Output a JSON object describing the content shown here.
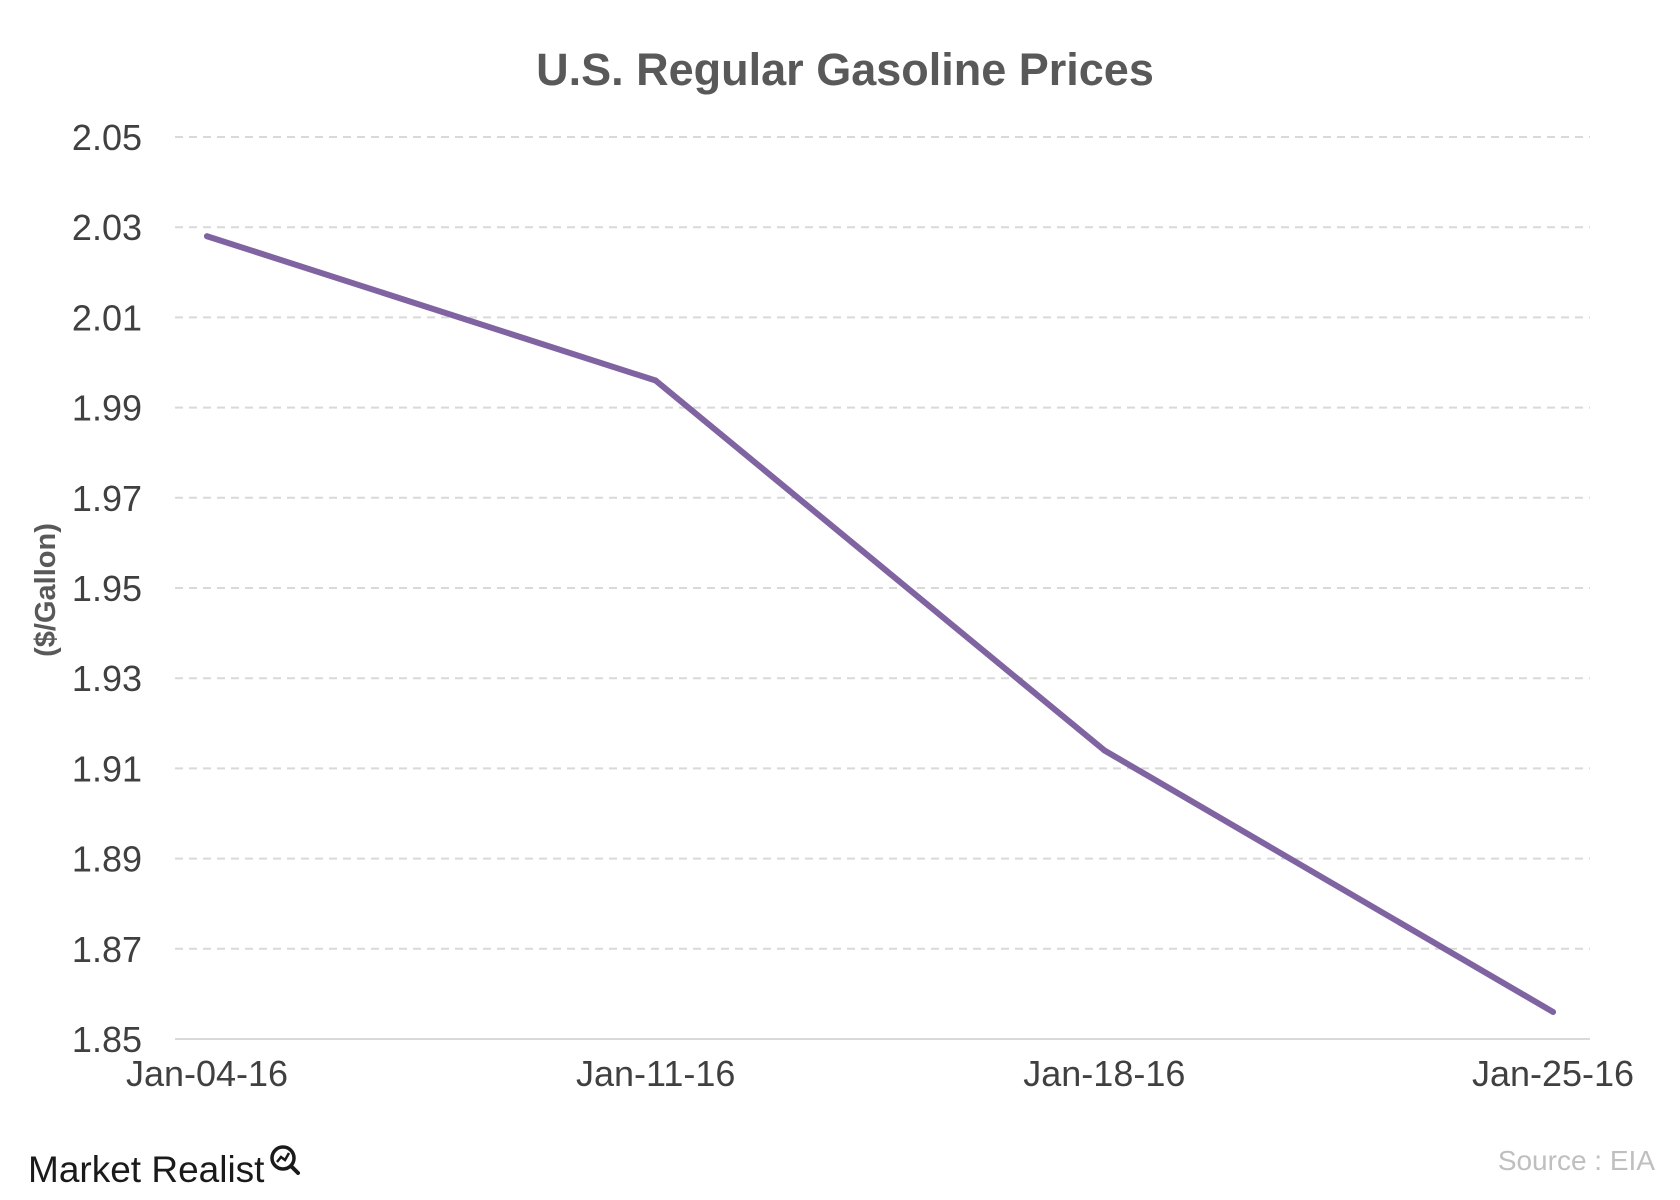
{
  "chart_data": {
    "type": "line",
    "title": "U.S. Regular Gasoline Prices",
    "ylabel": "($/Gallon)",
    "xlabel": "",
    "categories": [
      "Jan-04-16",
      "Jan-11-16",
      "Jan-18-16",
      "Jan-25-16"
    ],
    "series": [
      {
        "values": [
          2.028,
          1.996,
          1.914,
          1.856
        ]
      }
    ],
    "ylim": [
      1.85,
      2.05
    ],
    "yticks": [
      "2.05",
      "2.03",
      "2.01",
      "1.99",
      "1.97",
      "1.95",
      "1.93",
      "1.91",
      "1.89",
      "1.87",
      "1.85"
    ],
    "grid": true,
    "line_color": "#8064a2"
  },
  "footer": {
    "brand": "Market Realist",
    "source": "Source : EIA"
  }
}
